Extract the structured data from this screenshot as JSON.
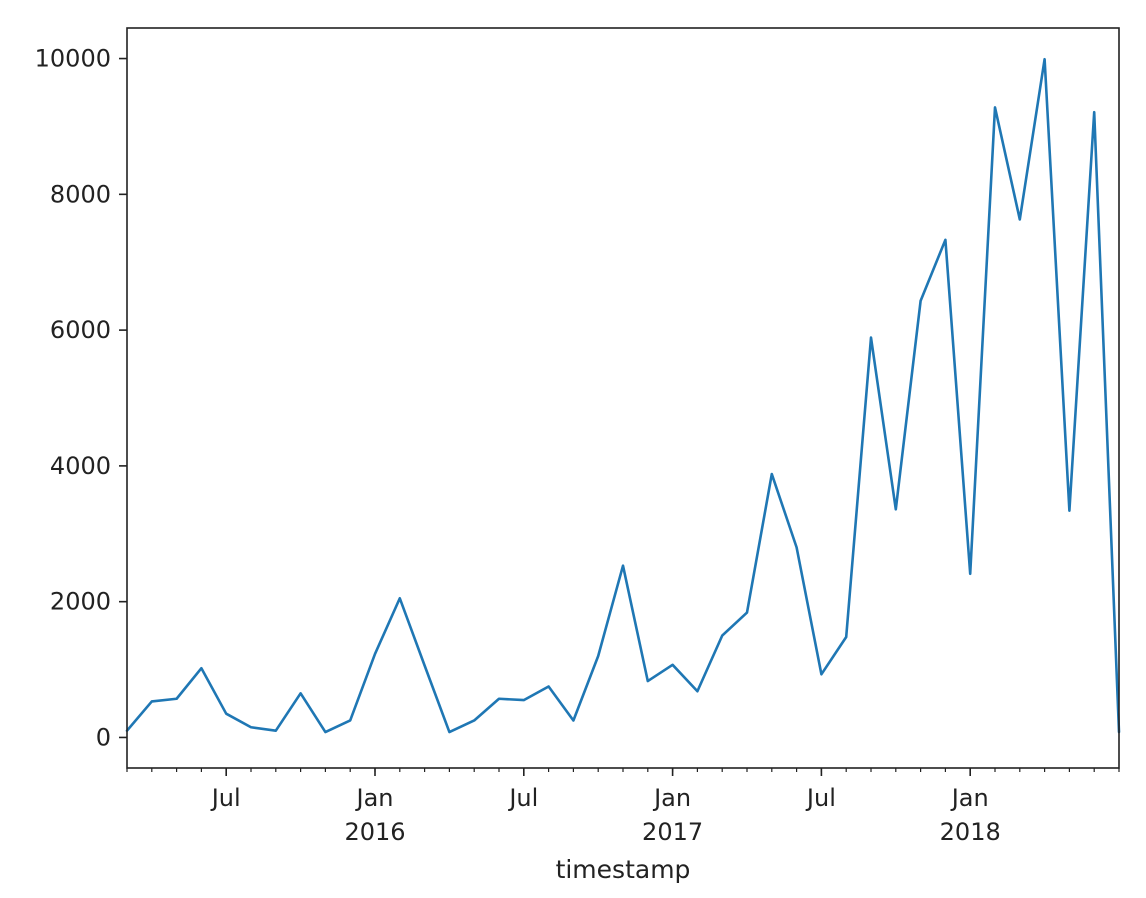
{
  "chart_data": {
    "type": "line",
    "title": "",
    "xlabel": "timestamp",
    "ylabel": "",
    "grid": false,
    "legend": "none",
    "line_color": "#1f77b4",
    "ylim": [
      -450,
      10450
    ],
    "xlim": [
      "2015-03",
      "2018-07"
    ],
    "yticks": [
      0,
      2000,
      4000,
      6000,
      8000,
      10000
    ],
    "ytick_labels": [
      "0",
      "2000",
      "4000",
      "6000",
      "8000",
      "10000"
    ],
    "xticks_major": [
      {
        "date": "2015-07",
        "label": "Jul",
        "year": ""
      },
      {
        "date": "2016-01",
        "label": "Jan",
        "year": "2016"
      },
      {
        "date": "2016-07",
        "label": "Jul",
        "year": ""
      },
      {
        "date": "2017-01",
        "label": "Jan",
        "year": "2017"
      },
      {
        "date": "2017-07",
        "label": "Jul",
        "year": ""
      },
      {
        "date": "2018-01",
        "label": "Jan",
        "year": "2018"
      }
    ],
    "x": [
      "2015-03",
      "2015-04",
      "2015-05",
      "2015-06",
      "2015-07",
      "2015-08",
      "2015-09",
      "2015-10",
      "2015-11",
      "2015-12",
      "2016-01",
      "2016-02",
      "2016-03",
      "2016-04",
      "2016-05",
      "2016-06",
      "2016-07",
      "2016-08",
      "2016-09",
      "2016-10",
      "2016-11",
      "2016-12",
      "2017-01",
      "2017-02",
      "2017-03",
      "2017-04",
      "2017-05",
      "2017-06",
      "2017-07",
      "2017-08",
      "2017-09",
      "2017-10",
      "2017-11",
      "2017-12",
      "2018-01",
      "2018-02",
      "2018-03",
      "2018-04",
      "2018-05",
      "2018-06",
      "2018-07"
    ],
    "series": [
      {
        "values": [
          100,
          530,
          570,
          1020,
          350,
          150,
          100,
          650,
          80,
          250,
          1230,
          2050,
          1060,
          80,
          250,
          570,
          550,
          750,
          250,
          1200,
          2530,
          830,
          1070,
          680,
          1500,
          1840,
          3880,
          2800,
          930,
          1480,
          5890,
          3360,
          6430,
          7330,
          2410,
          9280,
          7630,
          9990,
          3340,
          9210,
          80
        ]
      }
    ]
  }
}
